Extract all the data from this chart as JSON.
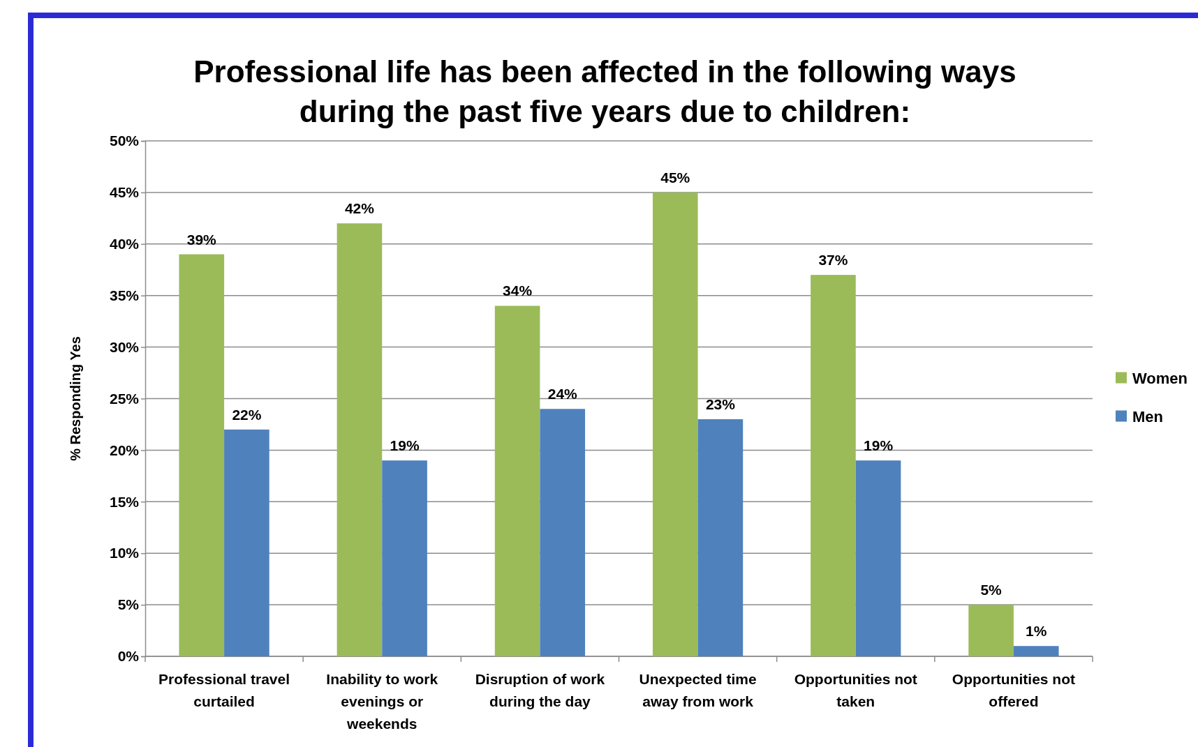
{
  "chart_data": {
    "type": "bar",
    "title": "Professional life has been affected in the following ways during the past five years due to children:",
    "ylabel": "% Responding Yes",
    "categories": [
      "Professional travel curtailed",
      "Inability to work evenings or weekends",
      "Disruption of work during the day",
      "Unexpected time away from work",
      "Opportunities not taken",
      "Opportunities not offered"
    ],
    "series": [
      {
        "name": "Women",
        "color": "#9bbb59",
        "values": [
          39,
          42,
          34,
          45,
          37,
          5
        ],
        "value_labels": [
          "39%",
          "42%",
          "34%",
          "45%",
          "37%",
          "5%"
        ]
      },
      {
        "name": "Men",
        "color": "#4f81bd",
        "values": [
          22,
          19,
          24,
          23,
          19,
          1
        ],
        "value_labels": [
          "22%",
          "19%",
          "24%",
          "23%",
          "19%",
          "1%"
        ]
      }
    ],
    "ylim": [
      0,
      50
    ],
    "yticks": [
      {
        "value": 0,
        "label": "0%"
      },
      {
        "value": 5,
        "label": "5%"
      },
      {
        "value": 10,
        "label": "10%"
      },
      {
        "value": 15,
        "label": "15%"
      },
      {
        "value": 20,
        "label": "20%"
      },
      {
        "value": 25,
        "label": "25%"
      },
      {
        "value": 30,
        "label": "30%"
      },
      {
        "value": 35,
        "label": "35%"
      },
      {
        "value": 40,
        "label": "40%"
      },
      {
        "value": 45,
        "label": "45%"
      },
      {
        "value": 50,
        "label": "50%"
      }
    ],
    "grid": "y",
    "legend": "right"
  }
}
